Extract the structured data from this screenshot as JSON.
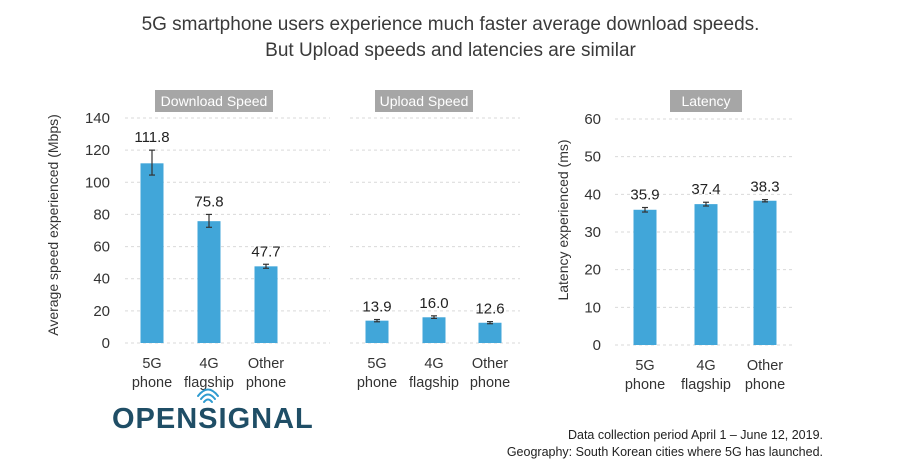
{
  "title_lines": [
    "5G smartphone users experience much faster average download speeds.",
    "But Upload speeds and latencies are similar"
  ],
  "brand": {
    "left": "OPENS",
    "mid": "I",
    "right": "GNAL"
  },
  "footer": {
    "line1": "Data collection period April 1 – June 12, 2019.",
    "line2": "Geography: South Korean cities where 5G has launched."
  },
  "colors": {
    "bar": "#41a6d9",
    "panel_label_bg": "#a6a6a6",
    "grid": "#d9d9d9",
    "brand": "#1f4e66"
  },
  "chart_data": [
    {
      "type": "bar",
      "panel_label": "Download Speed",
      "ylabel": "Average speed experienced (Mbps)",
      "ylim": [
        0,
        140
      ],
      "yticks": [
        0,
        20,
        40,
        60,
        80,
        100,
        120,
        140
      ],
      "grid": true,
      "categories": [
        [
          "5G",
          "phone"
        ],
        [
          "4G",
          "flagship"
        ],
        [
          "Other",
          "phone"
        ]
      ],
      "values": [
        111.8,
        75.8,
        47.7
      ],
      "value_labels": [
        "111.8",
        "75.8",
        "47.7"
      ],
      "error_low": [
        104.5,
        72.0,
        46.5
      ],
      "error_high": [
        120.0,
        80.0,
        49.0
      ]
    },
    {
      "type": "bar",
      "panel_label": "Upload Speed",
      "ylabel": "",
      "ylim": [
        0,
        140
      ],
      "grid": true,
      "categories": [
        [
          "5G",
          "phone"
        ],
        [
          "4G",
          "flagship"
        ],
        [
          "Other",
          "phone"
        ]
      ],
      "values": [
        13.9,
        16.0,
        12.6
      ],
      "value_labels": [
        "13.9",
        "16.0",
        "12.6"
      ],
      "error_low": [
        13.2,
        15.3,
        12.0
      ],
      "error_high": [
        14.6,
        16.9,
        13.3
      ]
    },
    {
      "type": "bar",
      "panel_label": "Latency",
      "ylabel": "Latency experienced (ms)",
      "ylim": [
        0,
        60
      ],
      "yticks": [
        0,
        10,
        20,
        30,
        40,
        50,
        60
      ],
      "grid": true,
      "categories": [
        [
          "5G",
          "phone"
        ],
        [
          "4G",
          "flagship"
        ],
        [
          "Other",
          "phone"
        ]
      ],
      "values": [
        35.9,
        37.4,
        38.3
      ],
      "value_labels": [
        "35.9",
        "37.4",
        "38.3"
      ],
      "error_low": [
        35.3,
        36.9,
        38.0
      ],
      "error_high": [
        36.5,
        37.9,
        38.6
      ]
    }
  ]
}
